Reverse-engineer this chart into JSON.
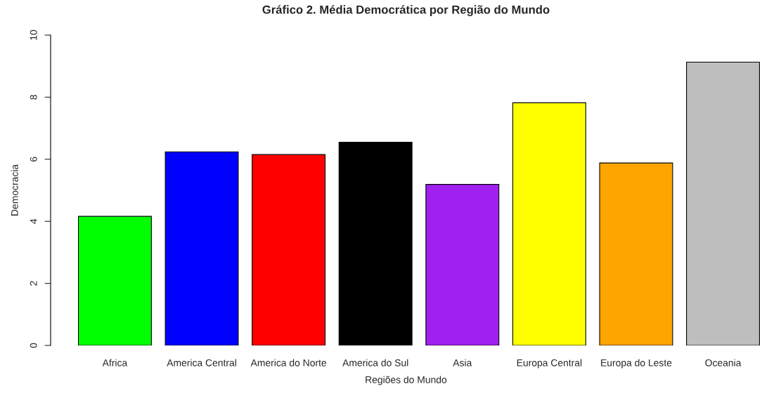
{
  "chart_data": {
    "type": "bar",
    "title": "Gráfico 2. Média Democrática por Região do Mundo",
    "xlabel": "Regiões do Mundo",
    "ylabel": "Democracia",
    "categories": [
      "Africa",
      "America Central",
      "America do Norte",
      "America do Sul",
      "Asia",
      "Europa Central",
      "Europa do Leste",
      "Oceania"
    ],
    "values": [
      4.16,
      6.24,
      6.15,
      6.55,
      5.19,
      7.82,
      5.88,
      9.13
    ],
    "colors": [
      "#00ff00",
      "#0000ff",
      "#ff0000",
      "#000000",
      "#a020f0",
      "#ffff00",
      "#ffa500",
      "#bebebe"
    ],
    "ylim": [
      0,
      10
    ],
    "yticks": [
      0,
      2,
      4,
      6,
      8,
      10
    ],
    "grid": false,
    "legend": false
  }
}
